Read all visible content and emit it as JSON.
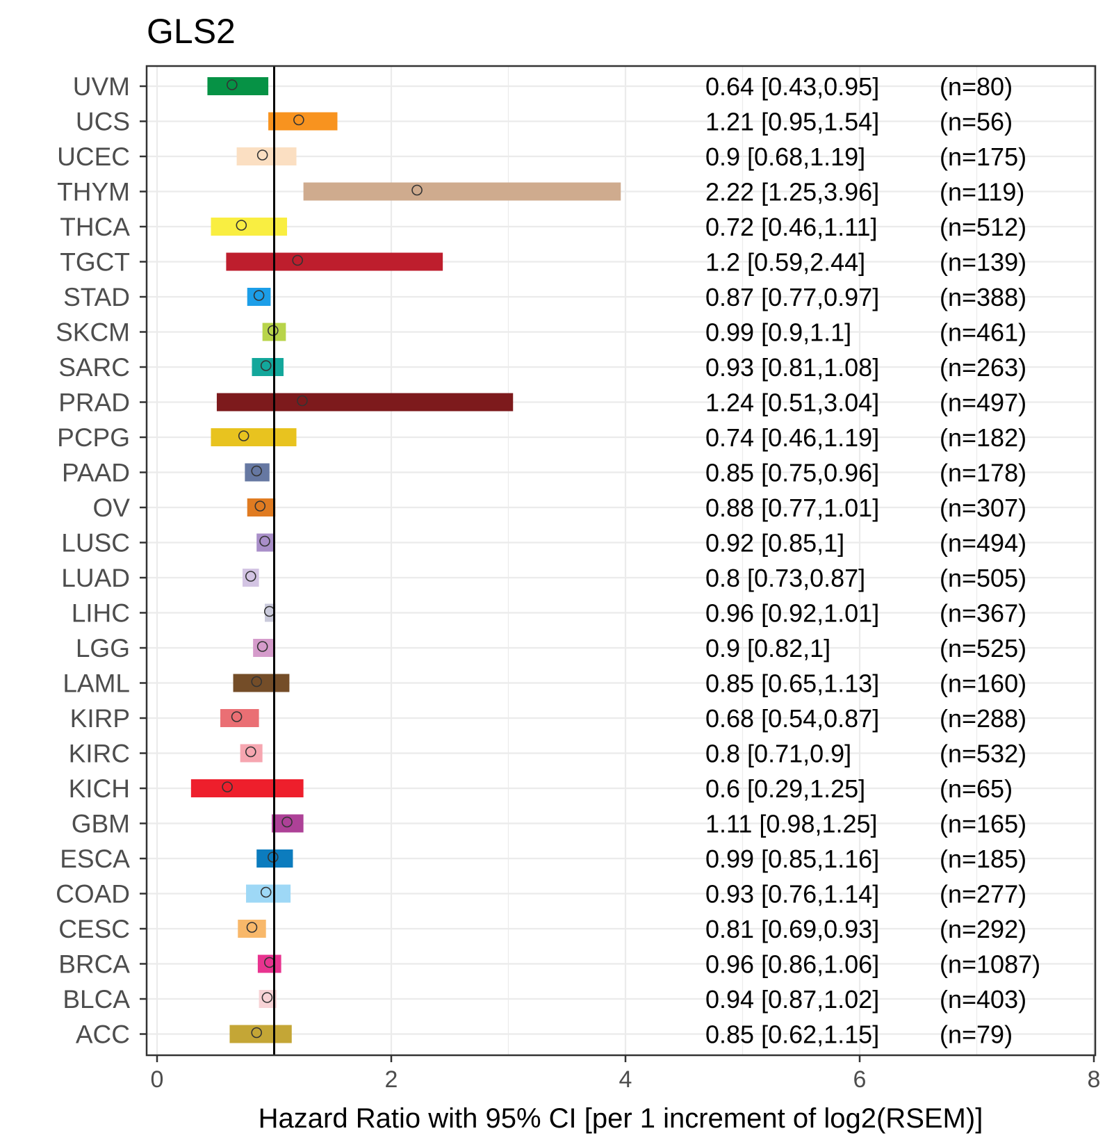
{
  "chart_data": {
    "type": "forest",
    "title": "GLS2",
    "xlabel": "Hazard Ratio with 95% CI [per 1 increment of log2(RSEM)]",
    "ylabel": "",
    "xlim": [
      0,
      8
    ],
    "xticks": [
      0,
      2,
      4,
      6,
      8
    ],
    "reference_line": 1,
    "grid": true,
    "rows": [
      {
        "label": "UVM",
        "hr": 0.64,
        "lower": 0.43,
        "upper": 0.95,
        "text": "0.64 [0.43,0.95]",
        "n": "(n=80)",
        "color": "#069245"
      },
      {
        "label": "UCS",
        "hr": 1.21,
        "lower": 0.95,
        "upper": 1.54,
        "text": "1.21 [0.95,1.54]",
        "n": "(n=56)",
        "color": "#f8931f"
      },
      {
        "label": "UCEC",
        "hr": 0.9,
        "lower": 0.68,
        "upper": 1.19,
        "text": "0.9 [0.68,1.19]",
        "n": "(n=175)",
        "color": "#fbdfc2"
      },
      {
        "label": "THYM",
        "hr": 2.22,
        "lower": 1.25,
        "upper": 3.96,
        "text": "2.22 [1.25,3.96]",
        "n": "(n=119)",
        "color": "#cfab8e"
      },
      {
        "label": "THCA",
        "hr": 0.72,
        "lower": 0.46,
        "upper": 1.11,
        "text": "0.72 [0.46,1.11]",
        "n": "(n=512)",
        "color": "#f9ee41"
      },
      {
        "label": "TGCT",
        "hr": 1.2,
        "lower": 0.59,
        "upper": 2.44,
        "text": "1.2 [0.59,2.44]",
        "n": "(n=139)",
        "color": "#be1e2d"
      },
      {
        "label": "STAD",
        "hr": 0.87,
        "lower": 0.77,
        "upper": 0.97,
        "text": "0.87 [0.77,0.97]",
        "n": "(n=388)",
        "color": "#1c9ee8"
      },
      {
        "label": "SKCM",
        "hr": 0.99,
        "lower": 0.9,
        "upper": 1.1,
        "text": "0.99 [0.9,1.1]",
        "n": "(n=461)",
        "color": "#b8d44a"
      },
      {
        "label": "SARC",
        "hr": 0.93,
        "lower": 0.81,
        "upper": 1.08,
        "text": "0.93 [0.81,1.08]",
        "n": "(n=263)",
        "color": "#13a79b"
      },
      {
        "label": "PRAD",
        "hr": 1.24,
        "lower": 0.51,
        "upper": 3.04,
        "text": "1.24 [0.51,3.04]",
        "n": "(n=497)",
        "color": "#7d1a1c"
      },
      {
        "label": "PCPG",
        "hr": 0.74,
        "lower": 0.46,
        "upper": 1.19,
        "text": "0.74 [0.46,1.19]",
        "n": "(n=182)",
        "color": "#e8c31f"
      },
      {
        "label": "PAAD",
        "hr": 0.85,
        "lower": 0.75,
        "upper": 0.96,
        "text": "0.85 [0.75,0.96]",
        "n": "(n=178)",
        "color": "#6678a2"
      },
      {
        "label": "OV",
        "hr": 0.88,
        "lower": 0.77,
        "upper": 1.01,
        "text": "0.88 [0.77,1.01]",
        "n": "(n=307)",
        "color": "#e07b21"
      },
      {
        "label": "LUSC",
        "hr": 0.92,
        "lower": 0.85,
        "upper": 1,
        "text": "0.92 [0.85,1]",
        "n": "(n=494)",
        "color": "#a98fc9"
      },
      {
        "label": "LUAD",
        "hr": 0.8,
        "lower": 0.73,
        "upper": 0.87,
        "text": "0.8 [0.73,0.87]",
        "n": "(n=505)",
        "color": "#d3c4e3"
      },
      {
        "label": "LIHC",
        "hr": 0.96,
        "lower": 0.92,
        "upper": 1.01,
        "text": "0.96 [0.92,1.01]",
        "n": "(n=367)",
        "color": "#cacadb"
      },
      {
        "label": "LGG",
        "hr": 0.9,
        "lower": 0.82,
        "upper": 1,
        "text": "0.9 [0.82,1]",
        "n": "(n=525)",
        "color": "#d59bcb"
      },
      {
        "label": "LAML",
        "hr": 0.85,
        "lower": 0.65,
        "upper": 1.13,
        "text": "0.85 [0.65,1.13]",
        "n": "(n=160)",
        "color": "#744d28"
      },
      {
        "label": "KIRP",
        "hr": 0.68,
        "lower": 0.54,
        "upper": 0.87,
        "text": "0.68 [0.54,0.87]",
        "n": "(n=288)",
        "color": "#ea6f74"
      },
      {
        "label": "KIRC",
        "hr": 0.8,
        "lower": 0.71,
        "upper": 0.9,
        "text": "0.8 [0.71,0.9]",
        "n": "(n=532)",
        "color": "#f6a6b0"
      },
      {
        "label": "KICH",
        "hr": 0.6,
        "lower": 0.29,
        "upper": 1.25,
        "text": "0.6 [0.29,1.25]",
        "n": "(n=65)",
        "color": "#ee1f2c"
      },
      {
        "label": "GBM",
        "hr": 1.11,
        "lower": 0.98,
        "upper": 1.25,
        "text": "1.11 [0.98,1.25]",
        "n": "(n=165)",
        "color": "#ad4197"
      },
      {
        "label": "ESCA",
        "hr": 0.99,
        "lower": 0.85,
        "upper": 1.16,
        "text": "0.99 [0.85,1.16]",
        "n": "(n=185)",
        "color": "#0c7cbe"
      },
      {
        "label": "COAD",
        "hr": 0.93,
        "lower": 0.76,
        "upper": 1.14,
        "text": "0.93 [0.76,1.14]",
        "n": "(n=277)",
        "color": "#9ed8f6"
      },
      {
        "label": "CESC",
        "hr": 0.81,
        "lower": 0.69,
        "upper": 0.93,
        "text": "0.81 [0.69,0.93]",
        "n": "(n=292)",
        "color": "#f8b86a"
      },
      {
        "label": "BRCA",
        "hr": 0.96,
        "lower": 0.86,
        "upper": 1.06,
        "text": "0.96 [0.86,1.06]",
        "n": "(n=1087)",
        "color": "#e8338f"
      },
      {
        "label": "BLCA",
        "hr": 0.94,
        "lower": 0.87,
        "upper": 1.02,
        "text": "0.94 [0.87,1.02]",
        "n": "(n=403)",
        "color": "#f8d3d6"
      },
      {
        "label": "ACC",
        "hr": 0.85,
        "lower": 0.62,
        "upper": 1.15,
        "text": "0.85 [0.62,1.15]",
        "n": "(n=79)",
        "color": "#c4a636"
      }
    ]
  }
}
